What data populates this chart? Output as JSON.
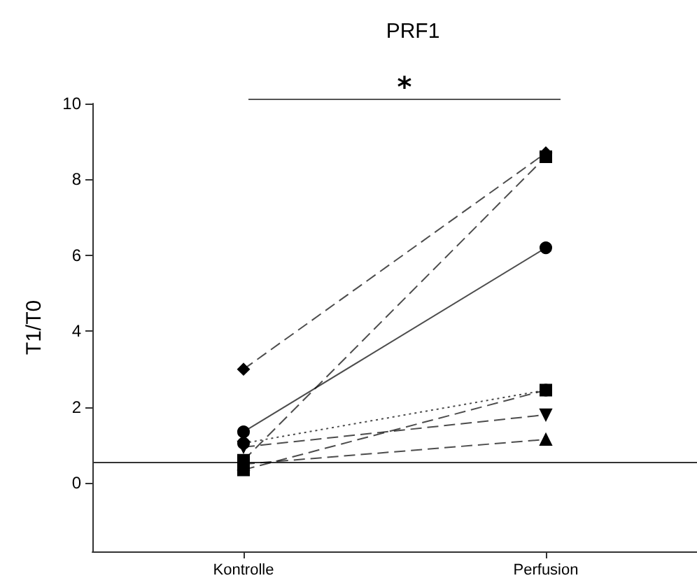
{
  "chart_data": {
    "type": "line",
    "title": "PRF1",
    "ylabel": "T1/T0",
    "categories": [
      "Kontrolle",
      "Perfusion"
    ],
    "series": [
      {
        "color": "#000000",
        "values": [
          3.0,
          8.7
        ],
        "marker": "diamond",
        "line_style": "dashed"
      },
      {
        "color": "#000000",
        "values": [
          1.35,
          6.2
        ],
        "marker": "circle",
        "line_style": "solid"
      },
      {
        "color": "#000000",
        "values": [
          0.6,
          8.6
        ],
        "marker": "square",
        "line_style": "dashed"
      },
      {
        "color": "#000000",
        "values": [
          1.05,
          2.45
        ],
        "marker": "circle",
        "line_style": "dotted"
      },
      {
        "color": "#000000",
        "values": [
          0.95,
          1.8
        ],
        "marker": "triangle-down",
        "line_style": "dashed"
      },
      {
        "color": "#000000",
        "values": [
          0.35,
          2.45
        ],
        "marker": "square",
        "line_style": "dashed"
      },
      {
        "color": "#000000",
        "values": [
          0.5,
          1.15
        ],
        "marker": "triangle",
        "line_style": "dashed"
      }
    ],
    "ylim": [
      -1.8,
      10
    ],
    "yticks": [
      0,
      2,
      4,
      6,
      8,
      10
    ],
    "grid": false,
    "ref_lines": [
      {
        "axis": "y",
        "value": 0.55
      }
    ],
    "annotations": [
      "*"
    ]
  }
}
